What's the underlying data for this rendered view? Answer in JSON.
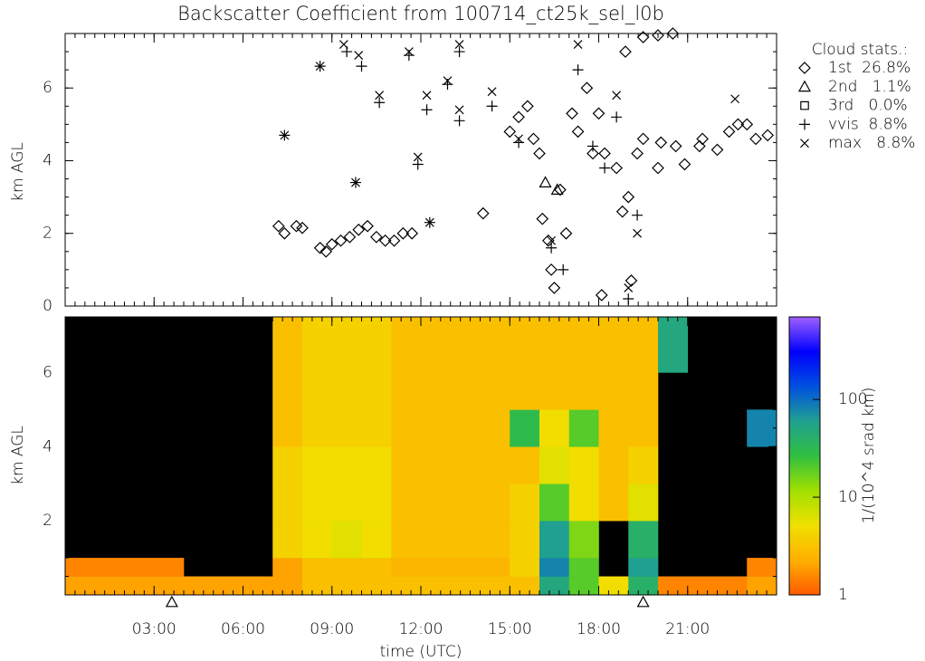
{
  "chart_data": [
    {
      "type": "scatter",
      "title": "Backscatter Coefficient from 100714_ct25k_sel_l0b",
      "ylabel": "km AGL",
      "legend_title": "Cloud stats.:",
      "legend": "right",
      "xlim": [
        0,
        24
      ],
      "xticks": [
        3,
        6,
        9,
        12,
        15,
        18,
        21
      ],
      "x_minor_ticks_per_hour": 3,
      "ylim": [
        0,
        7.5
      ],
      "yticks": [
        0,
        2,
        4,
        6
      ],
      "y_minor_ticks_per_km": 2,
      "series": [
        {
          "name": "1st  26.8%",
          "marker": "diamond",
          "color": "#000000",
          "x": [
            7.2,
            7.4,
            7.8,
            8.0,
            8.6,
            8.8,
            9.0,
            9.3,
            9.6,
            9.9,
            10.2,
            10.5,
            10.8,
            11.1,
            11.4,
            11.7,
            14.1,
            15.0,
            15.3,
            15.6,
            15.8,
            16.0,
            16.1,
            16.3,
            16.4,
            16.5,
            16.7,
            16.9,
            17.1,
            17.3,
            17.6,
            17.8,
            18.0,
            18.1,
            18.2,
            18.6,
            18.8,
            19.0,
            19.1,
            19.3,
            19.5,
            20.0,
            20.1,
            20.6,
            20.9,
            21.4,
            21.5,
            22.0,
            22.4,
            22.7,
            23.0,
            23.3,
            23.7,
            18.9,
            19.5,
            20.0,
            20.5
          ],
          "y": [
            2.2,
            2.0,
            2.2,
            2.15,
            1.6,
            1.5,
            1.7,
            1.8,
            1.9,
            2.1,
            2.2,
            1.9,
            1.8,
            1.8,
            2.0,
            2.0,
            2.55,
            4.8,
            5.2,
            5.5,
            4.6,
            4.2,
            2.4,
            1.8,
            1.0,
            0.5,
            3.2,
            2.0,
            5.3,
            4.8,
            6.0,
            4.2,
            5.3,
            0.3,
            4.2,
            3.8,
            2.6,
            3.0,
            0.7,
            4.2,
            4.6,
            3.8,
            4.5,
            4.4,
            3.9,
            4.4,
            4.6,
            4.3,
            4.8,
            5.0,
            5.0,
            4.6,
            4.7,
            7.0,
            7.4,
            7.45,
            7.5
          ]
        },
        {
          "name": "2nd   1.1%",
          "marker": "triangle",
          "color": "#000000",
          "x": [
            16.2,
            16.6
          ],
          "y": [
            3.4,
            3.2
          ]
        },
        {
          "name": "3rd   0.0%",
          "marker": "square",
          "color": "#000000",
          "x": [],
          "y": []
        },
        {
          "name": "vvis  8.8%",
          "marker": "plus",
          "color": "#000000",
          "x": [
            8.6,
            9.5,
            10.0,
            10.6,
            11.6,
            11.9,
            12.2,
            12.9,
            13.3,
            13.3,
            14.4,
            15.3,
            16.4,
            16.8,
            17.3,
            17.8,
            18.2,
            18.6,
            19.0,
            19.3,
            7.4,
            9.8,
            12.3
          ],
          "y": [
            6.6,
            7.0,
            6.6,
            5.6,
            6.9,
            3.9,
            5.4,
            6.1,
            5.1,
            7.0,
            5.5,
            4.5,
            1.6,
            1.0,
            6.5,
            4.4,
            3.8,
            5.2,
            0.2,
            2.5,
            4.7,
            3.4,
            2.3
          ]
        },
        {
          "name": "max   8.8%",
          "marker": "x",
          "color": "#000000",
          "x": [
            9.4,
            9.9,
            10.6,
            11.6,
            11.9,
            12.2,
            12.9,
            13.3,
            13.3,
            14.4,
            15.3,
            16.4,
            17.3,
            18.6,
            19.0,
            19.3,
            22.6,
            8.6,
            7.4,
            9.8,
            12.3
          ],
          "y": [
            7.2,
            6.9,
            5.8,
            7.0,
            4.1,
            5.8,
            6.2,
            7.2,
            5.4,
            5.9,
            4.6,
            1.8,
            7.2,
            5.8,
            0.5,
            2.0,
            5.7,
            6.6,
            4.7,
            3.4,
            2.3
          ]
        }
      ]
    },
    {
      "type": "heatmap",
      "ylabel": "km AGL",
      "xlabel": "time (UTC)",
      "colorbar_label": "1/(10^4 srad km)",
      "log_color": true,
      "background": "#000000",
      "colormap": [
        "#ff5a00",
        "#ffb000",
        "#f0e000",
        "#a0e000",
        "#30c040",
        "#20a090",
        "#0050e0",
        "#0000ff",
        "#a060ff"
      ],
      "clim": [
        1,
        700
      ],
      "cticks": [
        1,
        10,
        100
      ],
      "xlim": [
        0,
        24
      ],
      "xticks": [
        {
          "value": 3,
          "label": "03:00"
        },
        {
          "value": 6,
          "label": "06:00"
        },
        {
          "value": 9,
          "label": "09:00"
        },
        {
          "value": 12,
          "label": "12:00"
        },
        {
          "value": 15,
          "label": "15:00"
        },
        {
          "value": 18,
          "label": "18:00"
        },
        {
          "value": 21,
          "label": "21:00"
        }
      ],
      "x_minor_ticks_per_hour": 3,
      "ylim": [
        0,
        7.5
      ],
      "yticks": [
        2,
        4,
        6
      ],
      "y_minor_ticks_per_km": 2,
      "x_edges": [
        0,
        1,
        2,
        3,
        4,
        5,
        6,
        7,
        8,
        9,
        10,
        11,
        12,
        13,
        14,
        15,
        16,
        17,
        18,
        19,
        20,
        21,
        22,
        23,
        24
      ],
      "y_edges": [
        0,
        0.5,
        1,
        2,
        3,
        4,
        5,
        6,
        7.5
      ],
      "z": [
        [
          2,
          2,
          2,
          2,
          2,
          2,
          2,
          2,
          3,
          3,
          3,
          3,
          3,
          3,
          3,
          3,
          50,
          20,
          5,
          40,
          1.5,
          1.5,
          1.5,
          2
        ],
        [
          1.5,
          1.5,
          1.5,
          1.5,
          null,
          null,
          null,
          2,
          3,
          3,
          3,
          2.5,
          2.5,
          2.5,
          2.5,
          4,
          80,
          20,
          null,
          60,
          null,
          null,
          null,
          1.5
        ],
        [
          null,
          null,
          null,
          null,
          null,
          null,
          null,
          4,
          5,
          6,
          5,
          3,
          3,
          3,
          3,
          4,
          60,
          15,
          null,
          40,
          null,
          null,
          null,
          null
        ],
        [
          null,
          null,
          null,
          null,
          null,
          null,
          null,
          4,
          5,
          5,
          5,
          3,
          3,
          3,
          3,
          4,
          20,
          5,
          3,
          6,
          null,
          null,
          null,
          null
        ],
        [
          null,
          null,
          null,
          null,
          null,
          null,
          null,
          4,
          5,
          5,
          5,
          3,
          3,
          3,
          3,
          3,
          6,
          5,
          3,
          4,
          null,
          null,
          null,
          null
        ],
        [
          null,
          null,
          null,
          null,
          null,
          null,
          null,
          3,
          4,
          4,
          4,
          3,
          3,
          3,
          3,
          30,
          5,
          20,
          3,
          3,
          null,
          null,
          null,
          80
        ],
        [
          null,
          null,
          null,
          null,
          null,
          null,
          null,
          3,
          4,
          4,
          4,
          3,
          3,
          3,
          3,
          3,
          3,
          3,
          3,
          3,
          null,
          null,
          null,
          null
        ],
        [
          null,
          null,
          null,
          null,
          null,
          null,
          null,
          3,
          4,
          4,
          4,
          3,
          3,
          3,
          3,
          3,
          3,
          3,
          3,
          3,
          50,
          null,
          null,
          null
        ]
      ],
      "ground_markers_x": [
        3.6,
        19.5
      ]
    }
  ]
}
